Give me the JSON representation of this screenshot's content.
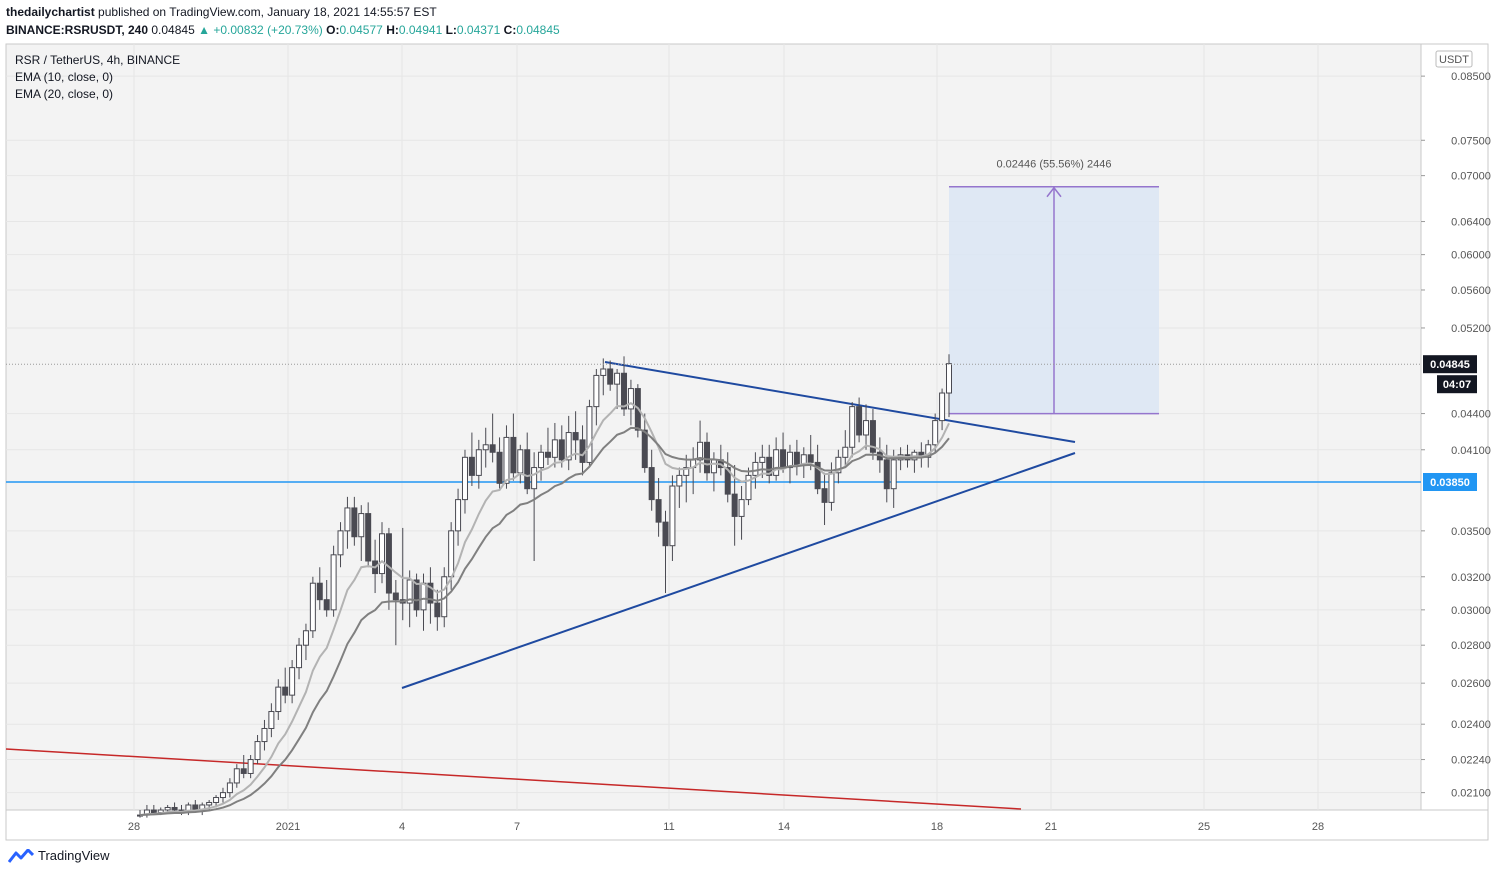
{
  "header": {
    "publisher": "thedailychartist",
    "published_text": "published on TradingView.com, January 18, 2021 14:55:57 EST",
    "symbol": "BINANCE:RSRUSDT, 240",
    "last": "0.04845",
    "change": "+0.00832 (+20.73%)",
    "o_label": "O:",
    "o": "0.04577",
    "h_label": "H:",
    "h": "0.04941",
    "l_label": "L:",
    "l": "0.04371",
    "c_label": "C:",
    "c": "0.04845"
  },
  "legend": {
    "title": "RSR / TetherUS, 4h, BINANCE",
    "ema10": "EMA (10, close, 0)",
    "ema20": "EMA (20, close, 0)"
  },
  "footer": {
    "brand": "TradingView"
  },
  "colors": {
    "grid": "#e6e6e6",
    "bg": "#f3f3f3",
    "candle": "#4a4a52",
    "ema10": "#b3b3b3",
    "ema20": "#808080",
    "trend": "#1f4aa0",
    "level": "#2196f3",
    "red_trend": "#c62828",
    "measure": "#9575cd",
    "measure_fill": "#dbe5f3",
    "price_label": "#131722"
  },
  "chart_data": {
    "type": "candlestick",
    "symbol": "RSR / TetherUS",
    "timeframe": "4h",
    "y_scale": "log",
    "ylim": [
      0.0203,
      0.0905
    ],
    "y_axis_ticks": [
      "0.08500",
      "0.07500",
      "0.07000",
      "0.06400",
      "0.06000",
      "0.05600",
      "0.05200",
      "0.04400",
      "0.04100",
      "0.03500",
      "0.03200",
      "0.03000",
      "0.02800",
      "0.02600",
      "0.02400",
      "0.02240",
      "0.02100"
    ],
    "y_axis_unit": "USDT",
    "x_axis_ticks": [
      "28",
      "2021",
      "4",
      "7",
      "11",
      "14",
      "18",
      "21",
      "25",
      "28"
    ],
    "last_price": "0.04845",
    "countdown": "04:07",
    "horizontal_level": "0.03850",
    "measure": {
      "label": "0.02446 (55.56%) 2446",
      "from": 0.044,
      "to": 0.0685
    },
    "candles": [
      [
        0.0201,
        0.0203,
        0.02,
        0.0201
      ],
      [
        0.0201,
        0.0205,
        0.02,
        0.0203
      ],
      [
        0.0203,
        0.0205,
        0.0201,
        0.0202
      ],
      [
        0.0202,
        0.0204,
        0.0201,
        0.0203
      ],
      [
        0.0203,
        0.0205,
        0.0202,
        0.0204
      ],
      [
        0.0204,
        0.0206,
        0.0202,
        0.0203
      ],
      [
        0.0203,
        0.0205,
        0.0201,
        0.0202
      ],
      [
        0.0202,
        0.0206,
        0.0201,
        0.0205
      ],
      [
        0.0205,
        0.0207,
        0.0202,
        0.0203
      ],
      [
        0.0203,
        0.0206,
        0.0201,
        0.0205
      ],
      [
        0.0205,
        0.0207,
        0.0203,
        0.0206
      ],
      [
        0.0206,
        0.0209,
        0.0204,
        0.0208
      ],
      [
        0.0208,
        0.0212,
        0.0206,
        0.021
      ],
      [
        0.021,
        0.0216,
        0.0208,
        0.0214
      ],
      [
        0.0214,
        0.0222,
        0.0212,
        0.022
      ],
      [
        0.022,
        0.0226,
        0.0216,
        0.0218
      ],
      [
        0.0218,
        0.0226,
        0.0216,
        0.0224
      ],
      [
        0.0224,
        0.0235,
        0.0222,
        0.0232
      ],
      [
        0.0232,
        0.0242,
        0.0228,
        0.0238
      ],
      [
        0.0238,
        0.025,
        0.0234,
        0.0246
      ],
      [
        0.0246,
        0.0262,
        0.0242,
        0.0258
      ],
      [
        0.0258,
        0.0268,
        0.025,
        0.0254
      ],
      [
        0.0254,
        0.0272,
        0.025,
        0.0268
      ],
      [
        0.0268,
        0.0284,
        0.0262,
        0.028
      ],
      [
        0.028,
        0.0292,
        0.0272,
        0.0288
      ],
      [
        0.0288,
        0.032,
        0.0284,
        0.0316
      ],
      [
        0.0316,
        0.0326,
        0.03,
        0.0306
      ],
      [
        0.0306,
        0.0318,
        0.0296,
        0.03
      ],
      [
        0.03,
        0.034,
        0.0296,
        0.0334
      ],
      [
        0.0334,
        0.0356,
        0.0326,
        0.035
      ],
      [
        0.035,
        0.0374,
        0.0338,
        0.0366
      ],
      [
        0.0366,
        0.0374,
        0.034,
        0.0346
      ],
      [
        0.0346,
        0.0368,
        0.033,
        0.0362
      ],
      [
        0.0362,
        0.037,
        0.0326,
        0.033
      ],
      [
        0.033,
        0.0344,
        0.031,
        0.0322
      ],
      [
        0.0322,
        0.0356,
        0.0316,
        0.0348
      ],
      [
        0.0348,
        0.0352,
        0.03,
        0.031
      ],
      [
        0.031,
        0.0318,
        0.028,
        0.0306
      ],
      [
        0.0306,
        0.0352,
        0.0294,
        0.0304
      ],
      [
        0.0304,
        0.0324,
        0.029,
        0.0318
      ],
      [
        0.0318,
        0.0322,
        0.0296,
        0.03
      ],
      [
        0.03,
        0.0322,
        0.0288,
        0.0316
      ],
      [
        0.0316,
        0.0326,
        0.0292,
        0.0304
      ],
      [
        0.0304,
        0.0312,
        0.0288,
        0.0296
      ],
      [
        0.0296,
        0.0326,
        0.029,
        0.032
      ],
      [
        0.032,
        0.0356,
        0.0312,
        0.035
      ],
      [
        0.035,
        0.038,
        0.034,
        0.0372
      ],
      [
        0.0372,
        0.041,
        0.0362,
        0.0404
      ],
      [
        0.0404,
        0.0424,
        0.0382,
        0.039
      ],
      [
        0.039,
        0.0418,
        0.038,
        0.041
      ],
      [
        0.041,
        0.0428,
        0.0396,
        0.0414
      ],
      [
        0.0414,
        0.044,
        0.04,
        0.0408
      ],
      [
        0.0408,
        0.042,
        0.038,
        0.0384
      ],
      [
        0.0384,
        0.043,
        0.038,
        0.042
      ],
      [
        0.042,
        0.044,
        0.0386,
        0.0392
      ],
      [
        0.0392,
        0.0414,
        0.0384,
        0.041
      ],
      [
        0.041,
        0.0424,
        0.0376,
        0.038
      ],
      [
        0.038,
        0.0408,
        0.033,
        0.0396
      ],
      [
        0.0396,
        0.0414,
        0.0386,
        0.0408
      ],
      [
        0.0408,
        0.0428,
        0.0398,
        0.0404
      ],
      [
        0.0404,
        0.0432,
        0.0396,
        0.0418
      ],
      [
        0.0418,
        0.043,
        0.0396,
        0.0402
      ],
      [
        0.0402,
        0.0438,
        0.0394,
        0.0424
      ],
      [
        0.0424,
        0.0442,
        0.0402,
        0.0418
      ],
      [
        0.0418,
        0.043,
        0.039,
        0.04
      ],
      [
        0.04,
        0.0452,
        0.0396,
        0.0446
      ],
      [
        0.0446,
        0.048,
        0.043,
        0.0474
      ],
      [
        0.0474,
        0.049,
        0.0456,
        0.048
      ],
      [
        0.048,
        0.0488,
        0.046,
        0.0466
      ],
      [
        0.0466,
        0.048,
        0.0444,
        0.0476
      ],
      [
        0.0476,
        0.0492,
        0.0438,
        0.0444
      ],
      [
        0.0444,
        0.047,
        0.043,
        0.0462
      ],
      [
        0.0462,
        0.0466,
        0.042,
        0.0426
      ],
      [
        0.0426,
        0.044,
        0.0392,
        0.0396
      ],
      [
        0.0396,
        0.041,
        0.0364,
        0.0372
      ],
      [
        0.0372,
        0.0388,
        0.0346,
        0.0356
      ],
      [
        0.0356,
        0.0364,
        0.031,
        0.034
      ],
      [
        0.034,
        0.039,
        0.033,
        0.0382
      ],
      [
        0.0382,
        0.0396,
        0.0366,
        0.039
      ],
      [
        0.039,
        0.0406,
        0.037,
        0.0396
      ],
      [
        0.0396,
        0.0412,
        0.0376,
        0.0402
      ],
      [
        0.0402,
        0.0434,
        0.0392,
        0.0416
      ],
      [
        0.0416,
        0.0424,
        0.0386,
        0.0392
      ],
      [
        0.0392,
        0.0408,
        0.0378,
        0.0402
      ],
      [
        0.0402,
        0.0414,
        0.039,
        0.0396
      ],
      [
        0.0396,
        0.0408,
        0.037,
        0.0376
      ],
      [
        0.0376,
        0.0398,
        0.034,
        0.036
      ],
      [
        0.036,
        0.0382,
        0.0344,
        0.0372
      ],
      [
        0.0372,
        0.0396,
        0.0368,
        0.039
      ],
      [
        0.039,
        0.0408,
        0.038,
        0.04
      ],
      [
        0.04,
        0.0414,
        0.0388,
        0.0404
      ],
      [
        0.0404,
        0.0414,
        0.0384,
        0.039
      ],
      [
        0.039,
        0.042,
        0.0386,
        0.041
      ],
      [
        0.041,
        0.0424,
        0.0392,
        0.0396
      ],
      [
        0.0396,
        0.0414,
        0.0384,
        0.0408
      ],
      [
        0.0408,
        0.0418,
        0.039,
        0.0398
      ],
      [
        0.0398,
        0.0412,
        0.0388,
        0.0406
      ],
      [
        0.0406,
        0.0422,
        0.0394,
        0.04
      ],
      [
        0.04,
        0.0414,
        0.0376,
        0.038
      ],
      [
        0.038,
        0.0392,
        0.0354,
        0.037
      ],
      [
        0.037,
        0.04,
        0.0364,
        0.0392
      ],
      [
        0.0392,
        0.041,
        0.0384,
        0.0404
      ],
      [
        0.0404,
        0.0426,
        0.0396,
        0.0412
      ],
      [
        0.0412,
        0.045,
        0.0404,
        0.0446
      ],
      [
        0.0446,
        0.0454,
        0.0416,
        0.0422
      ],
      [
        0.0422,
        0.0448,
        0.041,
        0.0434
      ],
      [
        0.0434,
        0.0444,
        0.0402,
        0.0408
      ],
      [
        0.0408,
        0.042,
        0.0392,
        0.0402
      ],
      [
        0.0402,
        0.0414,
        0.037,
        0.038
      ],
      [
        0.038,
        0.041,
        0.0366,
        0.0402
      ],
      [
        0.0402,
        0.0412,
        0.0394,
        0.0406
      ],
      [
        0.0406,
        0.0414,
        0.0396,
        0.0402
      ],
      [
        0.0402,
        0.041,
        0.0392,
        0.0408
      ],
      [
        0.0408,
        0.0416,
        0.0396,
        0.0404
      ],
      [
        0.0404,
        0.0418,
        0.0396,
        0.0414
      ],
      [
        0.0414,
        0.044,
        0.0408,
        0.0434
      ],
      [
        0.0434,
        0.0462,
        0.0426,
        0.0458
      ],
      [
        0.0458,
        0.0494,
        0.0437,
        0.0485
      ]
    ]
  }
}
